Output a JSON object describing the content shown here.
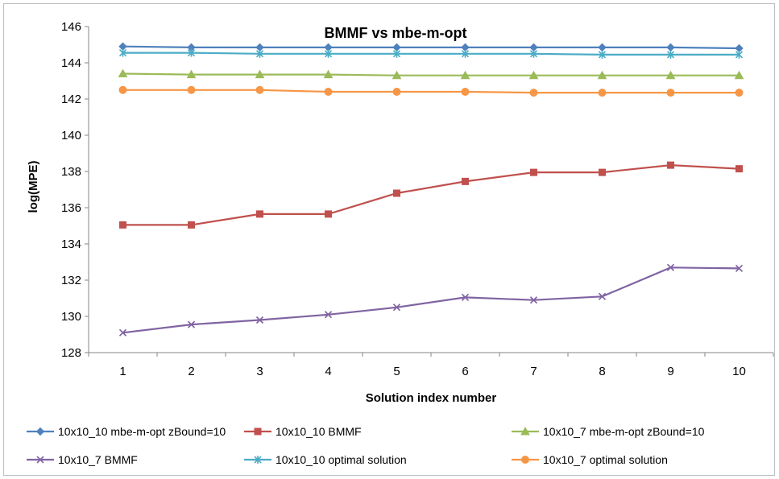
{
  "chart_data": {
    "type": "line",
    "title": "BMMF vs mbe-m-opt",
    "xlabel": "Solution index number",
    "ylabel": "log(MPE)",
    "x": [
      1,
      2,
      3,
      4,
      5,
      6,
      7,
      8,
      9,
      10
    ],
    "ylim": [
      128,
      146
    ],
    "yticks": [
      128,
      130,
      132,
      134,
      136,
      138,
      140,
      142,
      144,
      146
    ],
    "grid": false,
    "legend_position": "bottom",
    "series": [
      {
        "name": "10x10_10 mbe-m-opt zBound=10",
        "color": "#4f81bd",
        "marker": "diamond",
        "values": [
          144.9,
          144.85,
          144.85,
          144.85,
          144.85,
          144.85,
          144.85,
          144.85,
          144.85,
          144.8
        ]
      },
      {
        "name": "10x10_10 BMMF",
        "color": "#c0504d",
        "marker": "square",
        "values": [
          135.05,
          135.05,
          135.65,
          135.65,
          136.8,
          137.45,
          137.95,
          137.95,
          138.35,
          138.15
        ]
      },
      {
        "name": "10x10_7 mbe-m-opt zBound=10",
        "color": "#9bbb59",
        "marker": "triangle",
        "values": [
          143.4,
          143.35,
          143.35,
          143.35,
          143.3,
          143.3,
          143.3,
          143.3,
          143.3,
          143.3
        ]
      },
      {
        "name": "10x10_7 BMMF",
        "color": "#8064a2",
        "marker": "x",
        "values": [
          129.1,
          129.55,
          129.8,
          130.1,
          130.5,
          131.05,
          130.9,
          131.1,
          132.7,
          132.65
        ]
      },
      {
        "name": "10x10_10 optimal solution",
        "color": "#4bacc6",
        "marker": "star",
        "values": [
          144.55,
          144.55,
          144.5,
          144.5,
          144.5,
          144.5,
          144.5,
          144.45,
          144.45,
          144.45
        ]
      },
      {
        "name": "10x10_7 optimal solution",
        "color": "#f79646",
        "marker": "circle",
        "values": [
          142.5,
          142.5,
          142.5,
          142.4,
          142.4,
          142.4,
          142.35,
          142.35,
          142.35,
          142.35
        ]
      }
    ]
  }
}
